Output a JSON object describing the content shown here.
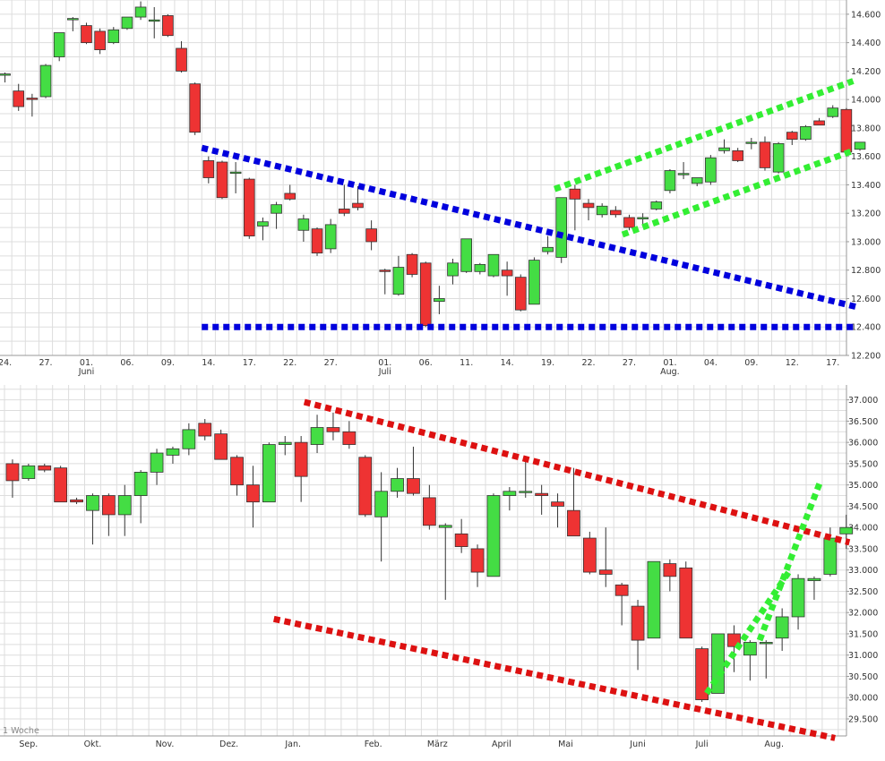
{
  "colors": {
    "up": "#44dd44",
    "down": "#ee3333",
    "wick": "#333333",
    "grid": "#dddddd",
    "blue_line": "#0000dd",
    "green_line": "#33ee33",
    "red_line": "#dd1111",
    "axis_text": "#333333"
  },
  "chart_data": [
    {
      "type": "candlestick",
      "title": "",
      "ylabel": "",
      "ylim": [
        12200,
        14700
      ],
      "y_ticks": [
        {
          "value": 12200,
          "label": "12.200"
        },
        {
          "value": 12400,
          "label": "12.400"
        },
        {
          "value": 12600,
          "label": "12.600"
        },
        {
          "value": 12800,
          "label": "12.800"
        },
        {
          "value": 13000,
          "label": "13.000"
        },
        {
          "value": 13200,
          "label": "13.200"
        },
        {
          "value": 13400,
          "label": "13.400"
        },
        {
          "value": 13600,
          "label": "13.600"
        },
        {
          "value": 13800,
          "label": "13.800"
        },
        {
          "value": 14000,
          "label": "14.000"
        },
        {
          "value": 14200,
          "label": "14.200"
        },
        {
          "value": 14400,
          "label": "14.400"
        },
        {
          "value": 14600,
          "label": "14.600"
        }
      ],
      "x_labels": [
        {
          "i": 0.5,
          "label": "24."
        },
        {
          "i": 3.5,
          "label": "27."
        },
        {
          "i": 6.5,
          "label": "01.",
          "sub": "Juni"
        },
        {
          "i": 9.5,
          "label": "06."
        },
        {
          "i": 12.5,
          "label": "09."
        },
        {
          "i": 15.5,
          "label": "14."
        },
        {
          "i": 18.5,
          "label": "17."
        },
        {
          "i": 21.5,
          "label": "22."
        },
        {
          "i": 24.5,
          "label": "27."
        },
        {
          "i": 28.5,
          "label": "01.",
          "sub": "Juli"
        },
        {
          "i": 31.5,
          "label": "06."
        },
        {
          "i": 34.5,
          "label": "11."
        },
        {
          "i": 37.5,
          "label": "14."
        },
        {
          "i": 40.5,
          "label": "19."
        },
        {
          "i": 43.5,
          "label": "22."
        },
        {
          "i": 46.5,
          "label": "27."
        },
        {
          "i": 49.5,
          "label": "01.",
          "sub": "Aug."
        },
        {
          "i": 52.5,
          "label": "04."
        },
        {
          "i": 55.5,
          "label": "09."
        },
        {
          "i": 58.5,
          "label": "12."
        },
        {
          "i": 61.5,
          "label": "17."
        }
      ],
      "candles": [
        {
          "o": 14180,
          "h": 14190,
          "l": 14120,
          "c": 14180
        },
        {
          "o": 14060,
          "h": 14110,
          "l": 13920,
          "c": 13950
        },
        {
          "o": 14010,
          "h": 14040,
          "l": 13880,
          "c": 14000
        },
        {
          "o": 14020,
          "h": 14250,
          "l": 14010,
          "c": 14240
        },
        {
          "o": 14300,
          "h": 14470,
          "l": 14270,
          "c": 14470
        },
        {
          "o": 14570,
          "h": 14580,
          "l": 14480,
          "c": 14570
        },
        {
          "o": 14520,
          "h": 14540,
          "l": 14390,
          "c": 14400
        },
        {
          "o": 14480,
          "h": 14500,
          "l": 14320,
          "c": 14350
        },
        {
          "o": 14400,
          "h": 14510,
          "l": 14390,
          "c": 14490
        },
        {
          "o": 14500,
          "h": 14580,
          "l": 14490,
          "c": 14580
        },
        {
          "o": 14580,
          "h": 14690,
          "l": 14560,
          "c": 14650
        },
        {
          "o": 14560,
          "h": 14650,
          "l": 14430,
          "c": 14560
        },
        {
          "o": 14590,
          "h": 14600,
          "l": 14440,
          "c": 14450
        },
        {
          "o": 14360,
          "h": 14410,
          "l": 14190,
          "c": 14200
        },
        {
          "o": 14110,
          "h": 14120,
          "l": 13750,
          "c": 13770
        },
        {
          "o": 13570,
          "h": 13600,
          "l": 13410,
          "c": 13450
        },
        {
          "o": 13560,
          "h": 13570,
          "l": 13300,
          "c": 13310
        },
        {
          "o": 13490,
          "h": 13560,
          "l": 13340,
          "c": 13490
        },
        {
          "o": 13440,
          "h": 13450,
          "l": 13020,
          "c": 13040
        },
        {
          "o": 13110,
          "h": 13170,
          "l": 13010,
          "c": 13140
        },
        {
          "o": 13200,
          "h": 13280,
          "l": 13090,
          "c": 13260
        },
        {
          "o": 13340,
          "h": 13400,
          "l": 13290,
          "c": 13300
        },
        {
          "o": 13080,
          "h": 13190,
          "l": 13000,
          "c": 13160
        },
        {
          "o": 13090,
          "h": 13100,
          "l": 12900,
          "c": 12920
        },
        {
          "o": 12950,
          "h": 13160,
          "l": 12920,
          "c": 13120
        },
        {
          "o": 13230,
          "h": 13400,
          "l": 13180,
          "c": 13200
        },
        {
          "o": 13270,
          "h": 13390,
          "l": 13220,
          "c": 13240
        },
        {
          "o": 13090,
          "h": 13150,
          "l": 12940,
          "c": 13000
        },
        {
          "o": 12800,
          "h": 12810,
          "l": 12630,
          "c": 12790
        },
        {
          "o": 12630,
          "h": 12900,
          "l": 12620,
          "c": 12820
        },
        {
          "o": 12910,
          "h": 12920,
          "l": 12750,
          "c": 12770
        },
        {
          "o": 12850,
          "h": 12860,
          "l": 12400,
          "c": 12410
        },
        {
          "o": 12580,
          "h": 12690,
          "l": 12490,
          "c": 12600
        },
        {
          "o": 12760,
          "h": 12880,
          "l": 12700,
          "c": 12850
        },
        {
          "o": 12790,
          "h": 13020,
          "l": 12780,
          "c": 13020
        },
        {
          "o": 12790,
          "h": 12850,
          "l": 12770,
          "c": 12840
        },
        {
          "o": 12760,
          "h": 12910,
          "l": 12750,
          "c": 12910
        },
        {
          "o": 12800,
          "h": 12860,
          "l": 12620,
          "c": 12760
        },
        {
          "o": 12750,
          "h": 12770,
          "l": 12510,
          "c": 12520
        },
        {
          "o": 12560,
          "h": 12890,
          "l": 12560,
          "c": 12870
        },
        {
          "o": 12930,
          "h": 13040,
          "l": 12910,
          "c": 12960
        },
        {
          "o": 12890,
          "h": 13310,
          "l": 12850,
          "c": 13310
        },
        {
          "o": 13370,
          "h": 13400,
          "l": 13080,
          "c": 13300
        },
        {
          "o": 13270,
          "h": 13300,
          "l": 13150,
          "c": 13240
        },
        {
          "o": 13190,
          "h": 13270,
          "l": 13170,
          "c": 13250
        },
        {
          "o": 13220,
          "h": 13250,
          "l": 13170,
          "c": 13190
        },
        {
          "o": 13170,
          "h": 13190,
          "l": 13080,
          "c": 13100
        },
        {
          "o": 13160,
          "h": 13200,
          "l": 13120,
          "c": 13170
        },
        {
          "o": 13230,
          "h": 13290,
          "l": 13220,
          "c": 13280
        },
        {
          "o": 13360,
          "h": 13510,
          "l": 13340,
          "c": 13500
        },
        {
          "o": 13480,
          "h": 13560,
          "l": 13440,
          "c": 13480
        },
        {
          "o": 13410,
          "h": 13450,
          "l": 13390,
          "c": 13450
        },
        {
          "o": 13420,
          "h": 13610,
          "l": 13400,
          "c": 13590
        },
        {
          "o": 13640,
          "h": 13720,
          "l": 13620,
          "c": 13660
        },
        {
          "o": 13640,
          "h": 13660,
          "l": 13560,
          "c": 13570
        },
        {
          "o": 13700,
          "h": 13730,
          "l": 13650,
          "c": 13700
        },
        {
          "o": 13700,
          "h": 13740,
          "l": 13500,
          "c": 13520
        },
        {
          "o": 13490,
          "h": 13700,
          "l": 13480,
          "c": 13690
        },
        {
          "o": 13770,
          "h": 13780,
          "l": 13680,
          "c": 13720
        },
        {
          "o": 13720,
          "h": 13820,
          "l": 13710,
          "c": 13810
        },
        {
          "o": 13850,
          "h": 13870,
          "l": 13820,
          "c": 13820
        },
        {
          "o": 13880,
          "h": 13960,
          "l": 13870,
          "c": 13940
        },
        {
          "o": 13930,
          "h": 13940,
          "l": 13610,
          "c": 13630
        },
        {
          "o": 13650,
          "h": 13700,
          "l": 13640,
          "c": 13700
        }
      ],
      "trendlines": [
        {
          "color": "blue",
          "points": [
            [
              15.0,
              13660
            ],
            [
              63.3,
              12540
            ]
          ]
        },
        {
          "color": "blue",
          "points": [
            [
              15.0,
              12400
            ],
            [
              63.3,
              12400
            ]
          ]
        },
        {
          "color": "green",
          "points": [
            [
              41.0,
              13370
            ],
            [
              63.0,
              14130
            ]
          ]
        },
        {
          "color": "green",
          "points": [
            [
              46.0,
              13050
            ],
            [
              63.0,
              13640
            ]
          ]
        }
      ]
    },
    {
      "type": "candlestick",
      "title": "",
      "ylabel": "",
      "period_label": "1 Woche",
      "ylim": [
        29100,
        37350
      ],
      "y_ticks": [
        {
          "value": 29500,
          "label": "29.500"
        },
        {
          "value": 30000,
          "label": "30.000"
        },
        {
          "value": 30500,
          "label": "30.500"
        },
        {
          "value": 31000,
          "label": "31.000"
        },
        {
          "value": 31500,
          "label": "31.500"
        },
        {
          "value": 32000,
          "label": "32.000"
        },
        {
          "value": 32500,
          "label": "32.500"
        },
        {
          "value": 33000,
          "label": "33.000"
        },
        {
          "value": 33500,
          "label": "33.500"
        },
        {
          "value": 34000,
          "label": "34.000"
        },
        {
          "value": 34500,
          "label": "34.500"
        },
        {
          "value": 35000,
          "label": "35.000"
        },
        {
          "value": 35500,
          "label": "35.500"
        },
        {
          "value": 36000,
          "label": "36.000"
        },
        {
          "value": 36500,
          "label": "36.500"
        },
        {
          "value": 37000,
          "label": "37.000"
        }
      ],
      "x_labels": [
        {
          "i": 1.5,
          "label": "Sep."
        },
        {
          "i": 5.5,
          "label": "Okt."
        },
        {
          "i": 10.0,
          "label": "Nov."
        },
        {
          "i": 14.0,
          "label": "Dez."
        },
        {
          "i": 18.0,
          "label": "Jan."
        },
        {
          "i": 23.0,
          "label": "Feb."
        },
        {
          "i": 27.0,
          "label": "März"
        },
        {
          "i": 31.0,
          "label": "April"
        },
        {
          "i": 35.0,
          "label": "Mai"
        },
        {
          "i": 39.5,
          "label": "Juni"
        },
        {
          "i": 43.5,
          "label": "Juli"
        },
        {
          "i": 48.0,
          "label": "Aug."
        }
      ],
      "candles": [
        {
          "o": 35500,
          "h": 35600,
          "l": 34700,
          "c": 35100
        },
        {
          "o": 35150,
          "h": 35500,
          "l": 35100,
          "c": 35450
        },
        {
          "o": 35450,
          "h": 35500,
          "l": 35300,
          "c": 35350
        },
        {
          "o": 35400,
          "h": 35450,
          "l": 34600,
          "c": 34600
        },
        {
          "o": 34650,
          "h": 34700,
          "l": 34550,
          "c": 34600
        },
        {
          "o": 34400,
          "h": 34800,
          "l": 33600,
          "c": 34750
        },
        {
          "o": 34750,
          "h": 34800,
          "l": 33800,
          "c": 34300
        },
        {
          "o": 34300,
          "h": 35000,
          "l": 33800,
          "c": 34750
        },
        {
          "o": 34750,
          "h": 35350,
          "l": 34100,
          "c": 35300
        },
        {
          "o": 35300,
          "h": 35850,
          "l": 35000,
          "c": 35750
        },
        {
          "o": 35700,
          "h": 35900,
          "l": 35500,
          "c": 35850
        },
        {
          "o": 35850,
          "h": 36450,
          "l": 35700,
          "c": 36300
        },
        {
          "o": 36450,
          "h": 36550,
          "l": 36050,
          "c": 36150
        },
        {
          "o": 36200,
          "h": 36300,
          "l": 35600,
          "c": 35600
        },
        {
          "o": 35650,
          "h": 35700,
          "l": 34750,
          "c": 35000
        },
        {
          "o": 35000,
          "h": 35450,
          "l": 34000,
          "c": 34600
        },
        {
          "o": 34600,
          "h": 36000,
          "l": 34600,
          "c": 35950
        },
        {
          "o": 35950,
          "h": 36150,
          "l": 35700,
          "c": 36000
        },
        {
          "o": 36000,
          "h": 36150,
          "l": 34600,
          "c": 35200
        },
        {
          "o": 35950,
          "h": 36650,
          "l": 35750,
          "c": 36350
        },
        {
          "o": 36350,
          "h": 36700,
          "l": 36050,
          "c": 36250
        },
        {
          "o": 36250,
          "h": 36500,
          "l": 35850,
          "c": 35950
        },
        {
          "o": 35650,
          "h": 35700,
          "l": 34250,
          "c": 34300
        },
        {
          "o": 34250,
          "h": 35300,
          "l": 33200,
          "c": 34850
        },
        {
          "o": 34850,
          "h": 35400,
          "l": 34700,
          "c": 35150
        },
        {
          "o": 35150,
          "h": 35900,
          "l": 34750,
          "c": 34800
        },
        {
          "o": 34700,
          "h": 35000,
          "l": 33950,
          "c": 34050
        },
        {
          "o": 34000,
          "h": 34100,
          "l": 32300,
          "c": 34050
        },
        {
          "o": 33850,
          "h": 34200,
          "l": 33400,
          "c": 33550
        },
        {
          "o": 33500,
          "h": 33600,
          "l": 32600,
          "c": 32950
        },
        {
          "o": 32850,
          "h": 34800,
          "l": 32850,
          "c": 34750
        },
        {
          "o": 34750,
          "h": 34950,
          "l": 34400,
          "c": 34850
        },
        {
          "o": 34850,
          "h": 35650,
          "l": 34700,
          "c": 34850
        },
        {
          "o": 34800,
          "h": 35000,
          "l": 34300,
          "c": 34750
        },
        {
          "o": 34600,
          "h": 34800,
          "l": 34000,
          "c": 34500
        },
        {
          "o": 34400,
          "h": 35400,
          "l": 33800,
          "c": 33800
        },
        {
          "o": 33750,
          "h": 33900,
          "l": 32900,
          "c": 32950
        },
        {
          "o": 33000,
          "h": 34000,
          "l": 32600,
          "c": 32900
        },
        {
          "o": 32650,
          "h": 32700,
          "l": 31700,
          "c": 32400
        },
        {
          "o": 32150,
          "h": 32300,
          "l": 30650,
          "c": 31350
        },
        {
          "o": 31400,
          "h": 33200,
          "l": 31400,
          "c": 33200
        },
        {
          "o": 33150,
          "h": 33250,
          "l": 32500,
          "c": 32850
        },
        {
          "o": 33050,
          "h": 33200,
          "l": 31400,
          "c": 31400
        },
        {
          "o": 31150,
          "h": 31200,
          "l": 29900,
          "c": 29950
        },
        {
          "o": 30100,
          "h": 31500,
          "l": 30100,
          "c": 31500
        },
        {
          "o": 31500,
          "h": 31700,
          "l": 30600,
          "c": 31200
        },
        {
          "o": 31000,
          "h": 31350,
          "l": 30400,
          "c": 31300
        },
        {
          "o": 31300,
          "h": 31350,
          "l": 30450,
          "c": 31300
        },
        {
          "o": 31400,
          "h": 32100,
          "l": 31100,
          "c": 31900
        },
        {
          "o": 31900,
          "h": 32900,
          "l": 31600,
          "c": 32800
        },
        {
          "o": 32750,
          "h": 32850,
          "l": 32300,
          "c": 32800
        },
        {
          "o": 32900,
          "h": 34000,
          "l": 32850,
          "c": 33750
        },
        {
          "o": 33850,
          "h": 34300,
          "l": 33500,
          "c": 34000
        }
      ],
      "trendlines": [
        {
          "color": "red",
          "points": [
            [
              18.7,
              36950
            ],
            [
              52.7,
              33650
            ]
          ]
        },
        {
          "color": "red",
          "points": [
            [
              16.8,
              31850
            ],
            [
              51.8,
              29050
            ]
          ]
        },
        {
          "color": "green",
          "points": [
            [
              43.8,
              30100
            ],
            [
              49.0,
              33000
            ]
          ]
        },
        {
          "color": "green",
          "points": [
            [
              47.1,
              31350
            ],
            [
              50.9,
              35100
            ]
          ]
        }
      ]
    }
  ]
}
